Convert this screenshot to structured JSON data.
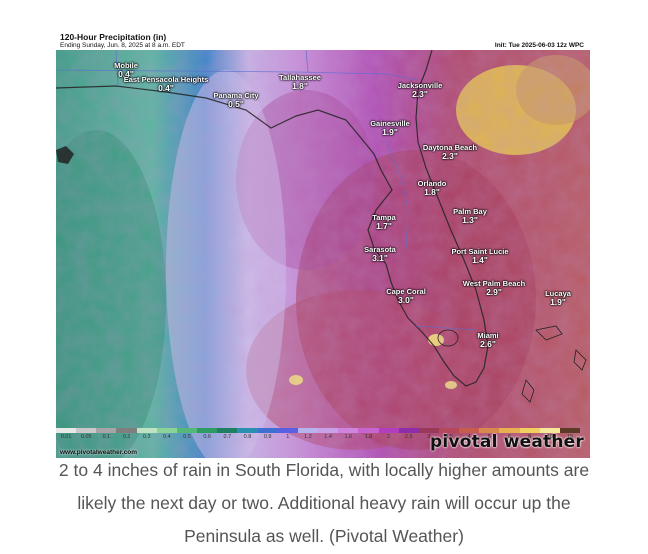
{
  "header": {
    "title": "120-Hour Precipitation (in)",
    "subtitle": "Ending Sunday, Jun. 8, 2025 at 8 a.m. EDT",
    "init": "Init: Tue 2025-06-03 12z WPC"
  },
  "cities": [
    {
      "name": "Mobile",
      "value": "0.4\""
    },
    {
      "name": "East Pensacola Heights",
      "value": "0.4\""
    },
    {
      "name": "Panama City",
      "value": "0.5\""
    },
    {
      "name": "Tallahassee",
      "value": "1.8\""
    },
    {
      "name": "Jacksonville",
      "value": "2.3\""
    },
    {
      "name": "Gainesville",
      "value": "1.9\""
    },
    {
      "name": "Daytona Beach",
      "value": "2.3\""
    },
    {
      "name": "Orlando",
      "value": "1.8\""
    },
    {
      "name": "Tampa",
      "value": "1.7\""
    },
    {
      "name": "Palm Bay",
      "value": "1.3\""
    },
    {
      "name": "Sarasota",
      "value": "3.1\""
    },
    {
      "name": "Port Saint Lucie",
      "value": "1.4\""
    },
    {
      "name": "West Palm Beach",
      "value": "2.9\""
    },
    {
      "name": "Cape Coral",
      "value": "3.0\""
    },
    {
      "name": "Lucaya",
      "value": "1.9\""
    },
    {
      "name": "Miami",
      "value": "2.6\""
    }
  ],
  "branding": {
    "site": "www.pivotalweather.com",
    "logo_text": "pivotal weather"
  },
  "legend": {
    "ticks": [
      "0.01",
      "0.05",
      "0.1",
      "0.2",
      "0.3",
      "0.4",
      "0.5",
      "0.6",
      "0.7",
      "0.8",
      "0.9",
      "1",
      "1.2",
      "1.4",
      "1.6",
      "1.8",
      "2",
      "2.5",
      "3",
      "3.5",
      "4",
      "5",
      "6",
      "8",
      "10",
      "15"
    ],
    "colors": [
      "#e8e8e8",
      "#c9c9c9",
      "#a5a5a5",
      "#7f7f7f",
      "#bfe3c2",
      "#8cd39a",
      "#55b879",
      "#2e9a64",
      "#1f7f63",
      "#2a8fb0",
      "#3f6fd0",
      "#5a5ee0",
      "#b7b3ec",
      "#c7a2e8",
      "#cf85e0",
      "#c864cf",
      "#b23ebd",
      "#8d2ea8",
      "#9a3a5a",
      "#b4485a",
      "#c85c4c",
      "#d88a4e",
      "#e8b050",
      "#f0d060",
      "#f6ea9a",
      "#5b3a28"
    ]
  },
  "caption": "2 to 4 inches of rain in South Florida, with locally higher amounts are likely the next day or two. Additional heavy rain will occur up the Peninsula as well. (Pivotal Weather)"
}
